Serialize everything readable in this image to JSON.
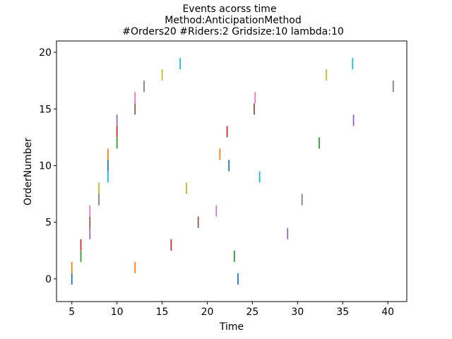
{
  "chart_data": {
    "type": "scatter",
    "marker": "vertical-line",
    "title_lines": [
      "Events acorss time",
      "Method:AnticipationMethod",
      "#Orders20  #Riders:2  Gridsize:10  lambda:10"
    ],
    "xlabel": "Time",
    "ylabel": "OrderNumber",
    "xlim": [
      3.3,
      42.1
    ],
    "ylim": [
      -2.0,
      21.0
    ],
    "xticks": [
      5,
      10,
      15,
      20,
      25,
      30,
      35,
      40
    ],
    "yticks": [
      0,
      5,
      10,
      15,
      20
    ],
    "grid": false,
    "legend": "none",
    "palette": [
      "#1f77b4",
      "#ff7f0e",
      "#2ca02c",
      "#d62728",
      "#9467bd",
      "#8c564b",
      "#e377c2",
      "#7f7f7f",
      "#bcbd22",
      "#17becf"
    ],
    "points": [
      {
        "x": 5.0,
        "y": 0,
        "c": 0
      },
      {
        "x": 5.0,
        "y": 1,
        "c": 1
      },
      {
        "x": 6.0,
        "y": 2,
        "c": 2
      },
      {
        "x": 6.0,
        "y": 3,
        "c": 3
      },
      {
        "x": 7.0,
        "y": 4,
        "c": 4
      },
      {
        "x": 7.0,
        "y": 5,
        "c": 5
      },
      {
        "x": 7.0,
        "y": 6,
        "c": 6
      },
      {
        "x": 8.0,
        "y": 7,
        "c": 7
      },
      {
        "x": 8.0,
        "y": 8,
        "c": 8
      },
      {
        "x": 9.0,
        "y": 9,
        "c": 9
      },
      {
        "x": 9.0,
        "y": 10,
        "c": 0
      },
      {
        "x": 9.0,
        "y": 11,
        "c": 1
      },
      {
        "x": 10.0,
        "y": 12,
        "c": 2
      },
      {
        "x": 10.0,
        "y": 13,
        "c": 3
      },
      {
        "x": 10.0,
        "y": 14,
        "c": 4
      },
      {
        "x": 12.0,
        "y": 15,
        "c": 5
      },
      {
        "x": 12.0,
        "y": 16,
        "c": 6
      },
      {
        "x": 13.0,
        "y": 17,
        "c": 7
      },
      {
        "x": 15.0,
        "y": 18,
        "c": 8
      },
      {
        "x": 17.0,
        "y": 19,
        "c": 9
      },
      {
        "x": 23.4,
        "y": 0,
        "c": 0
      },
      {
        "x": 12.0,
        "y": 1,
        "c": 1
      },
      {
        "x": 23.0,
        "y": 2,
        "c": 2
      },
      {
        "x": 16.0,
        "y": 3,
        "c": 3
      },
      {
        "x": 28.9,
        "y": 4,
        "c": 4
      },
      {
        "x": 19.0,
        "y": 5,
        "c": 5
      },
      {
        "x": 21.0,
        "y": 6,
        "c": 6
      },
      {
        "x": 30.5,
        "y": 7,
        "c": 7
      },
      {
        "x": 17.7,
        "y": 8,
        "c": 8
      },
      {
        "x": 25.8,
        "y": 9,
        "c": 9
      },
      {
        "x": 22.4,
        "y": 10,
        "c": 0
      },
      {
        "x": 21.4,
        "y": 11,
        "c": 1
      },
      {
        "x": 32.4,
        "y": 12,
        "c": 2
      },
      {
        "x": 22.2,
        "y": 13,
        "c": 3
      },
      {
        "x": 36.2,
        "y": 14,
        "c": 4
      },
      {
        "x": 25.2,
        "y": 15,
        "c": 5
      },
      {
        "x": 25.3,
        "y": 16,
        "c": 6
      },
      {
        "x": 40.6,
        "y": 17,
        "c": 7
      },
      {
        "x": 33.2,
        "y": 18,
        "c": 8
      },
      {
        "x": 36.1,
        "y": 19,
        "c": 9
      }
    ]
  }
}
